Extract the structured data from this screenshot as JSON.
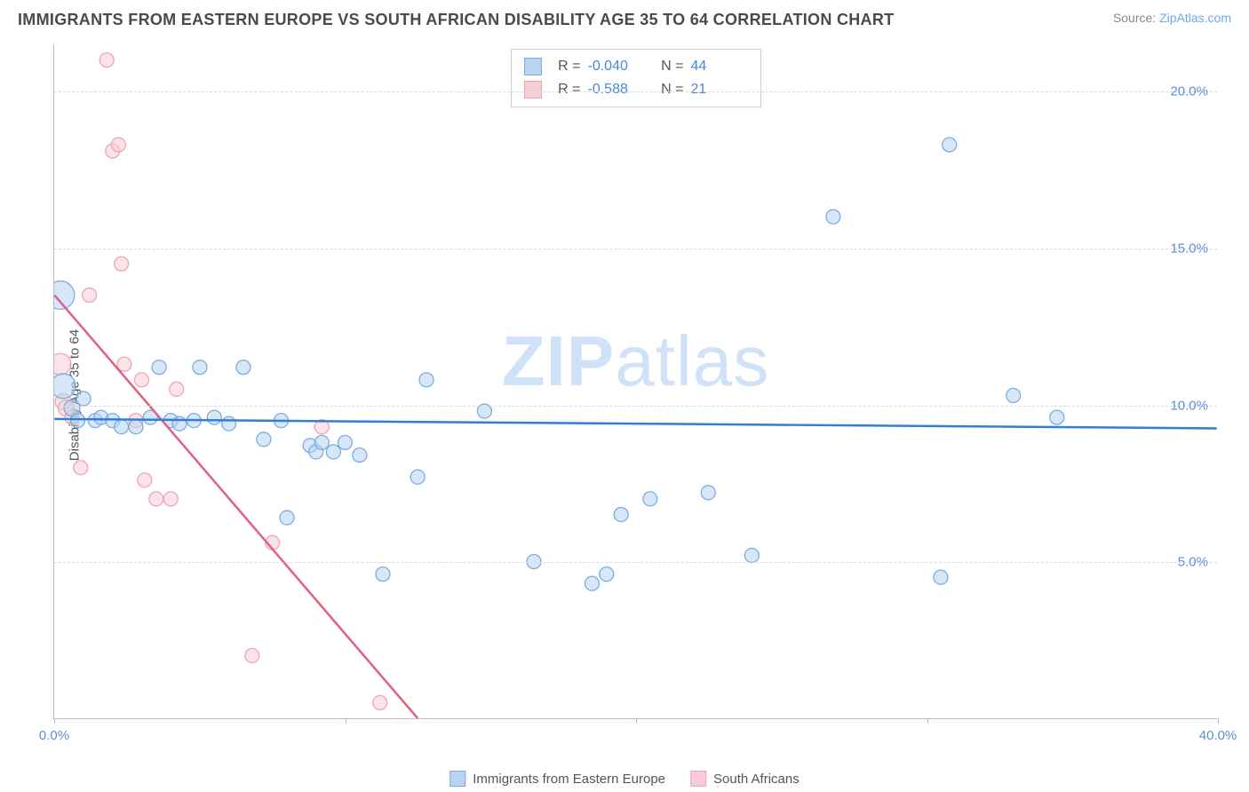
{
  "title": "IMMIGRANTS FROM EASTERN EUROPE VS SOUTH AFRICAN DISABILITY AGE 35 TO 64 CORRELATION CHART",
  "source_prefix": "Source: ",
  "source_name": "ZipAtlas.com",
  "ylabel": "Disability Age 35 to 64",
  "watermark_a": "ZIP",
  "watermark_b": "atlas",
  "chart": {
    "type": "scatter",
    "xlim": [
      0,
      40
    ],
    "ylim": [
      0,
      21.5
    ],
    "xticks": [
      0,
      10,
      20,
      30,
      40
    ],
    "xtick_labels": [
      "0.0%",
      "",
      "",
      "",
      "40.0%"
    ],
    "ygrid": [
      5,
      10,
      15,
      20
    ],
    "ytick_labels": [
      "5.0%",
      "10.0%",
      "15.0%",
      "20.0%"
    ],
    "background_color": "#ffffff",
    "grid_color": "#dcdcdc",
    "axis_color": "#bbbbbb"
  },
  "series": {
    "blue": {
      "label": "Immigrants from Eastern Europe",
      "fill": "#b8d4f1",
      "stroke": "#7aaee2",
      "line_color": "#2f7ed8",
      "line_width": 2.5,
      "R_label": "R =",
      "R": "-0.040",
      "N_label": "N =",
      "N": "44",
      "regression": {
        "x1": 0,
        "y1": 9.55,
        "x2": 40,
        "y2": 9.25
      },
      "points": [
        {
          "x": 0.2,
          "y": 13.5,
          "r": 16
        },
        {
          "x": 0.3,
          "y": 10.6,
          "r": 14
        },
        {
          "x": 0.6,
          "y": 9.9,
          "r": 9
        },
        {
          "x": 0.8,
          "y": 9.5,
          "r": 8
        },
        {
          "x": 1.0,
          "y": 10.2,
          "r": 8
        },
        {
          "x": 1.4,
          "y": 9.5,
          "r": 8
        },
        {
          "x": 1.6,
          "y": 9.6,
          "r": 8
        },
        {
          "x": 2.0,
          "y": 9.5,
          "r": 8
        },
        {
          "x": 2.3,
          "y": 9.3,
          "r": 8
        },
        {
          "x": 2.8,
          "y": 9.3,
          "r": 8
        },
        {
          "x": 3.3,
          "y": 9.6,
          "r": 8
        },
        {
          "x": 3.6,
          "y": 11.2,
          "r": 8
        },
        {
          "x": 4.0,
          "y": 9.5,
          "r": 8
        },
        {
          "x": 4.3,
          "y": 9.4,
          "r": 8
        },
        {
          "x": 4.8,
          "y": 9.5,
          "r": 8
        },
        {
          "x": 5.0,
          "y": 11.2,
          "r": 8
        },
        {
          "x": 5.5,
          "y": 9.6,
          "r": 8
        },
        {
          "x": 6.0,
          "y": 9.4,
          "r": 8
        },
        {
          "x": 6.5,
          "y": 11.2,
          "r": 8
        },
        {
          "x": 7.2,
          "y": 8.9,
          "r": 8
        },
        {
          "x": 7.8,
          "y": 9.5,
          "r": 8
        },
        {
          "x": 8.0,
          "y": 6.4,
          "r": 8
        },
        {
          "x": 8.8,
          "y": 8.7,
          "r": 8
        },
        {
          "x": 9.0,
          "y": 8.5,
          "r": 8
        },
        {
          "x": 9.2,
          "y": 8.8,
          "r": 8
        },
        {
          "x": 9.6,
          "y": 8.5,
          "r": 8
        },
        {
          "x": 10.0,
          "y": 8.8,
          "r": 8
        },
        {
          "x": 10.5,
          "y": 8.4,
          "r": 8
        },
        {
          "x": 11.3,
          "y": 4.6,
          "r": 8
        },
        {
          "x": 12.5,
          "y": 7.7,
          "r": 8
        },
        {
          "x": 12.8,
          "y": 10.8,
          "r": 8
        },
        {
          "x": 14.8,
          "y": 9.8,
          "r": 8
        },
        {
          "x": 16.5,
          "y": 5.0,
          "r": 8
        },
        {
          "x": 18.5,
          "y": 4.3,
          "r": 8
        },
        {
          "x": 19.0,
          "y": 4.6,
          "r": 8
        },
        {
          "x": 19.5,
          "y": 6.5,
          "r": 8
        },
        {
          "x": 20.5,
          "y": 7.0,
          "r": 8
        },
        {
          "x": 22.5,
          "y": 7.2,
          "r": 8
        },
        {
          "x": 24.0,
          "y": 5.2,
          "r": 8
        },
        {
          "x": 26.8,
          "y": 16.0,
          "r": 8
        },
        {
          "x": 30.5,
          "y": 4.5,
          "r": 8
        },
        {
          "x": 30.8,
          "y": 18.3,
          "r": 8
        },
        {
          "x": 33.0,
          "y": 10.3,
          "r": 8
        },
        {
          "x": 34.5,
          "y": 9.6,
          "r": 8
        }
      ]
    },
    "pink": {
      "label": "South Africans",
      "fill": "#f7cdd7",
      "stroke": "#eda4b5",
      "line_color": "#e0607f",
      "line_width": 2.5,
      "R_label": "R =",
      "R": "-0.588",
      "N_label": "N =",
      "N": "21",
      "regression": {
        "x1": 0,
        "y1": 13.5,
        "x2": 12.5,
        "y2": 0
      },
      "points": [
        {
          "x": 0.2,
          "y": 11.3,
          "r": 12
        },
        {
          "x": 0.3,
          "y": 10.1,
          "r": 9
        },
        {
          "x": 0.4,
          "y": 9.9,
          "r": 9
        },
        {
          "x": 0.6,
          "y": 9.6,
          "r": 8
        },
        {
          "x": 0.9,
          "y": 8.0,
          "r": 8
        },
        {
          "x": 1.2,
          "y": 13.5,
          "r": 8
        },
        {
          "x": 1.8,
          "y": 21.0,
          "r": 8
        },
        {
          "x": 2.0,
          "y": 18.1,
          "r": 8
        },
        {
          "x": 2.2,
          "y": 18.3,
          "r": 8
        },
        {
          "x": 2.3,
          "y": 14.5,
          "r": 8
        },
        {
          "x": 2.4,
          "y": 11.3,
          "r": 8
        },
        {
          "x": 2.8,
          "y": 9.5,
          "r": 8
        },
        {
          "x": 3.0,
          "y": 10.8,
          "r": 8
        },
        {
          "x": 3.1,
          "y": 7.6,
          "r": 8
        },
        {
          "x": 3.5,
          "y": 7.0,
          "r": 8
        },
        {
          "x": 4.0,
          "y": 7.0,
          "r": 8
        },
        {
          "x": 4.2,
          "y": 10.5,
          "r": 8
        },
        {
          "x": 6.8,
          "y": 2.0,
          "r": 8
        },
        {
          "x": 7.5,
          "y": 5.6,
          "r": 8
        },
        {
          "x": 9.2,
          "y": 9.3,
          "r": 8
        },
        {
          "x": 11.2,
          "y": 0.5,
          "r": 8
        }
      ]
    }
  }
}
